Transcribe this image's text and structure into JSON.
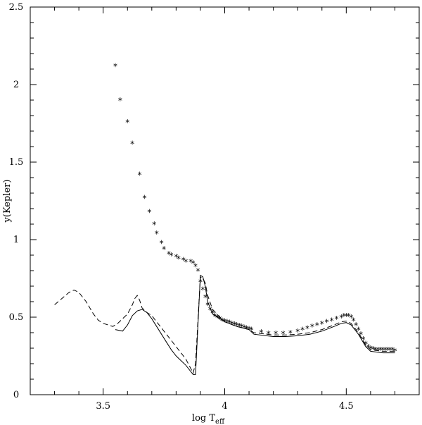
{
  "chart_data": {
    "type": "line",
    "xlabel": "log T",
    "xlabel_subscript": "eff",
    "ylabel": "y(Kepler)",
    "xlim": [
      3.2,
      4.8
    ],
    "ylim": [
      0,
      2.5
    ],
    "x_ticks": [
      "3.5",
      "4",
      "4.5"
    ],
    "y_ticks": [
      "0",
      "0.5",
      "1",
      "1.5",
      "2",
      "2.5"
    ],
    "grid": false,
    "series": [
      {
        "style": "solid",
        "x": [
          3.55,
          3.58,
          3.6,
          3.62,
          3.64,
          3.66,
          3.68,
          3.7,
          3.72,
          3.74,
          3.76,
          3.78,
          3.8,
          3.82,
          3.84,
          3.86,
          3.87,
          3.88,
          3.9,
          3.91,
          3.92,
          3.93,
          3.95,
          3.98,
          4.0,
          4.05,
          4.1,
          4.12,
          4.2,
          4.25,
          4.3,
          4.35,
          4.4,
          4.45,
          4.48,
          4.5,
          4.52,
          4.55,
          4.58,
          4.6,
          4.65,
          4.7
        ],
        "y": [
          0.42,
          0.41,
          0.45,
          0.51,
          0.54,
          0.55,
          0.53,
          0.49,
          0.44,
          0.39,
          0.34,
          0.29,
          0.25,
          0.22,
          0.19,
          0.15,
          0.13,
          0.13,
          0.77,
          0.76,
          0.7,
          0.6,
          0.52,
          0.49,
          0.47,
          0.44,
          0.42,
          0.39,
          0.375,
          0.375,
          0.38,
          0.39,
          0.41,
          0.44,
          0.46,
          0.465,
          0.45,
          0.39,
          0.31,
          0.28,
          0.27,
          0.27
        ]
      },
      {
        "style": "dashed",
        "x": [
          3.3,
          3.33,
          3.36,
          3.38,
          3.4,
          3.43,
          3.46,
          3.48,
          3.5,
          3.52,
          3.54,
          3.56,
          3.58,
          3.6,
          3.62,
          3.63,
          3.64,
          3.65,
          3.66,
          3.68,
          3.7,
          3.72,
          3.75,
          3.78,
          3.8,
          3.82,
          3.84,
          3.86,
          3.87,
          3.88,
          3.9,
          3.91,
          3.92,
          3.93,
          3.95,
          3.98,
          4.0,
          4.05,
          4.1,
          4.12,
          4.2,
          4.25,
          4.3,
          4.35,
          4.4,
          4.45,
          4.48,
          4.5,
          4.52,
          4.55,
          4.58,
          4.6,
          4.65,
          4.7
        ],
        "y": [
          0.58,
          0.62,
          0.66,
          0.675,
          0.66,
          0.6,
          0.52,
          0.48,
          0.46,
          0.45,
          0.44,
          0.46,
          0.49,
          0.52,
          0.58,
          0.62,
          0.64,
          0.61,
          0.56,
          0.53,
          0.51,
          0.47,
          0.41,
          0.35,
          0.31,
          0.27,
          0.23,
          0.17,
          0.14,
          0.2,
          0.76,
          0.75,
          0.72,
          0.64,
          0.55,
          0.5,
          0.47,
          0.44,
          0.42,
          0.4,
          0.385,
          0.385,
          0.39,
          0.4,
          0.42,
          0.45,
          0.47,
          0.475,
          0.46,
          0.4,
          0.32,
          0.29,
          0.28,
          0.28
        ]
      },
      {
        "style": "asterisk",
        "x": [
          3.55,
          3.57,
          3.6,
          3.62,
          3.65,
          3.67,
          3.69,
          3.71,
          3.72,
          3.74,
          3.75,
          3.77,
          3.78,
          3.8,
          3.81,
          3.83,
          3.84,
          3.86,
          3.87,
          3.88,
          3.89,
          3.9,
          3.91,
          3.92,
          3.93,
          3.94,
          3.95,
          3.96,
          3.97,
          3.98,
          3.99,
          4.0,
          4.01,
          4.02,
          4.03,
          4.04,
          4.05,
          4.06,
          4.07,
          4.08,
          4.09,
          4.1,
          4.11,
          4.15,
          4.18,
          4.21,
          4.24,
          4.27,
          4.3,
          4.32,
          4.34,
          4.36,
          4.38,
          4.4,
          4.42,
          4.44,
          4.46,
          4.48,
          4.49,
          4.5,
          4.51,
          4.52,
          4.53,
          4.54,
          4.55,
          4.56,
          4.57,
          4.58,
          4.59,
          4.6,
          4.61,
          4.62,
          4.63,
          4.64,
          4.65,
          4.66,
          4.67,
          4.68,
          4.69,
          4.7
        ],
        "y": [
          2.12,
          1.9,
          1.76,
          1.62,
          1.42,
          1.27,
          1.18,
          1.1,
          1.04,
          0.98,
          0.94,
          0.91,
          0.9,
          0.89,
          0.88,
          0.87,
          0.86,
          0.86,
          0.85,
          0.83,
          0.8,
          0.73,
          0.68,
          0.63,
          0.58,
          0.55,
          0.53,
          0.51,
          0.5,
          0.49,
          0.48,
          0.475,
          0.47,
          0.465,
          0.46,
          0.455,
          0.45,
          0.445,
          0.44,
          0.435,
          0.43,
          0.425,
          0.42,
          0.405,
          0.395,
          0.395,
          0.395,
          0.4,
          0.41,
          0.42,
          0.43,
          0.44,
          0.45,
          0.46,
          0.47,
          0.48,
          0.49,
          0.5,
          0.51,
          0.51,
          0.51,
          0.5,
          0.48,
          0.45,
          0.42,
          0.39,
          0.36,
          0.33,
          0.31,
          0.3,
          0.295,
          0.29,
          0.29,
          0.29,
          0.29,
          0.29,
          0.29,
          0.29,
          0.29,
          0.285
        ]
      }
    ]
  }
}
